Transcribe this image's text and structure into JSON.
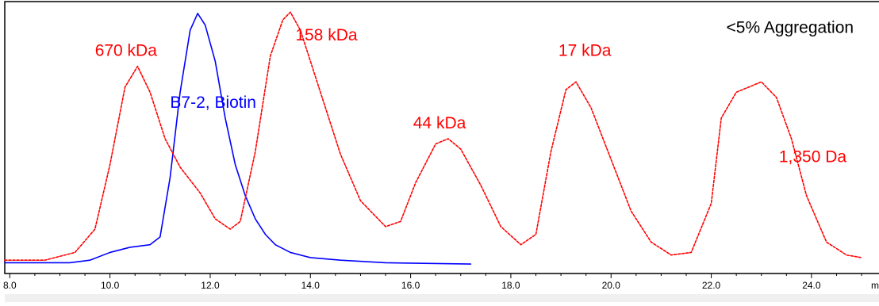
{
  "chart_data": {
    "type": "line",
    "xlabel": "m",
    "ylabel": "",
    "xlim": [
      7.9,
      25.3
    ],
    "ylim": [
      0,
      1
    ],
    "x_ticks": [
      "8.0",
      "10.0",
      "12.0",
      "14.0",
      "16.0",
      "18.0",
      "20.0",
      "22.0",
      "24.0"
    ],
    "grid": false,
    "series": [
      {
        "name": "B7-2, Biotin",
        "color": "#0000ff",
        "dash": "solid",
        "points": [
          [
            7.9,
            0.02
          ],
          [
            9.2,
            0.02
          ],
          [
            9.6,
            0.03
          ],
          [
            10.0,
            0.06
          ],
          [
            10.4,
            0.08
          ],
          [
            10.8,
            0.09
          ],
          [
            11.0,
            0.12
          ],
          [
            11.2,
            0.35
          ],
          [
            11.4,
            0.68
          ],
          [
            11.6,
            0.92
          ],
          [
            11.75,
            0.985
          ],
          [
            11.9,
            0.94
          ],
          [
            12.1,
            0.8
          ],
          [
            12.3,
            0.58
          ],
          [
            12.5,
            0.4
          ],
          [
            12.7,
            0.28
          ],
          [
            12.9,
            0.19
          ],
          [
            13.1,
            0.13
          ],
          [
            13.3,
            0.09
          ],
          [
            13.6,
            0.06
          ],
          [
            14.0,
            0.04
          ],
          [
            14.6,
            0.03
          ],
          [
            15.5,
            0.02
          ],
          [
            17.2,
            0.015
          ]
        ]
      },
      {
        "name": "",
        "color": "#ff0000",
        "dash": "dotted",
        "points": [
          [
            7.9,
            0.03
          ],
          [
            8.7,
            0.03
          ],
          [
            9.3,
            0.06
          ],
          [
            9.7,
            0.15
          ],
          [
            10.0,
            0.4
          ],
          [
            10.3,
            0.7
          ],
          [
            10.55,
            0.78
          ],
          [
            10.8,
            0.68
          ],
          [
            11.1,
            0.5
          ],
          [
            11.4,
            0.39
          ],
          [
            11.8,
            0.29
          ],
          [
            12.1,
            0.19
          ],
          [
            12.4,
            0.15
          ],
          [
            12.6,
            0.18
          ],
          [
            12.9,
            0.45
          ],
          [
            13.2,
            0.82
          ],
          [
            13.45,
            0.96
          ],
          [
            13.6,
            0.99
          ],
          [
            13.8,
            0.92
          ],
          [
            14.2,
            0.68
          ],
          [
            14.6,
            0.44
          ],
          [
            15.0,
            0.26
          ],
          [
            15.5,
            0.16
          ],
          [
            15.8,
            0.18
          ],
          [
            16.1,
            0.33
          ],
          [
            16.5,
            0.48
          ],
          [
            16.75,
            0.5
          ],
          [
            17.0,
            0.46
          ],
          [
            17.4,
            0.32
          ],
          [
            17.8,
            0.16
          ],
          [
            18.2,
            0.09
          ],
          [
            18.5,
            0.13
          ],
          [
            18.8,
            0.45
          ],
          [
            19.1,
            0.69
          ],
          [
            19.3,
            0.72
          ],
          [
            19.6,
            0.62
          ],
          [
            20.0,
            0.42
          ],
          [
            20.4,
            0.22
          ],
          [
            20.8,
            0.1
          ],
          [
            21.2,
            0.05
          ],
          [
            21.6,
            0.06
          ],
          [
            22.0,
            0.25
          ],
          [
            22.2,
            0.58
          ],
          [
            22.5,
            0.68
          ],
          [
            23.0,
            0.72
          ],
          [
            23.3,
            0.66
          ],
          [
            23.6,
            0.5
          ],
          [
            23.9,
            0.28
          ],
          [
            24.3,
            0.1
          ],
          [
            24.7,
            0.05
          ],
          [
            25.0,
            0.04
          ]
        ]
      }
    ],
    "annotations": [
      {
        "text": "670 kDa",
        "x": 9.7,
        "y": 0.82,
        "color": "#ff0000"
      },
      {
        "text": "158 kDa",
        "x": 13.7,
        "y": 0.88,
        "color": "#ff0000"
      },
      {
        "text": "B7-2, Biotin",
        "x": 11.2,
        "y": 0.62,
        "color": "#0000ff"
      },
      {
        "text": "44 kDa",
        "x": 16.05,
        "y": 0.54,
        "color": "#ff0000"
      },
      {
        "text": "17 kDa",
        "x": 18.95,
        "y": 0.82,
        "color": "#ff0000"
      },
      {
        "text": "<5% Aggregation",
        "x": 22.3,
        "y": 0.91,
        "color": "#000000"
      },
      {
        "text": "1,350 Da",
        "x": 23.35,
        "y": 0.41,
        "color": "#ff0000"
      }
    ]
  }
}
